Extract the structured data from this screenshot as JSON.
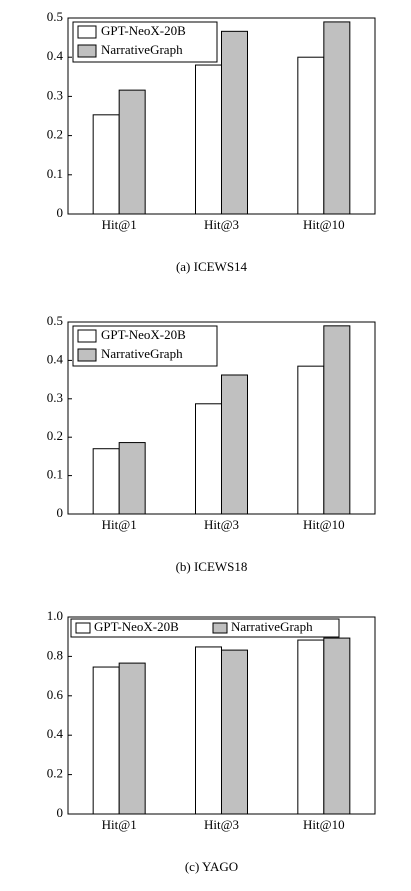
{
  "chart_data": [
    {
      "type": "bar",
      "caption": "(a) ICEWS14",
      "categories": [
        "Hit@1",
        "Hit@3",
        "Hit@10"
      ],
      "series": [
        {
          "name": "GPT-NeoX-20B",
          "color": "#ffffff",
          "values": [
            0.253,
            0.38,
            0.4
          ]
        },
        {
          "name": "NarrativeGraph",
          "color": "#c0c0c0",
          "values": [
            0.316,
            0.466,
            0.49
          ]
        }
      ],
      "ylim": [
        0,
        0.5
      ],
      "yticks": [
        0,
        0.1,
        0.2,
        0.3,
        0.4,
        0.5
      ],
      "legend": "upper left",
      "legend_layout": "vertical"
    },
    {
      "type": "bar",
      "caption": "(b) ICEWS18",
      "categories": [
        "Hit@1",
        "Hit@3",
        "Hit@10"
      ],
      "series": [
        {
          "name": "GPT-NeoX-20B",
          "color": "#ffffff",
          "values": [
            0.17,
            0.287,
            0.385
          ]
        },
        {
          "name": "NarrativeGraph",
          "color": "#c0c0c0",
          "values": [
            0.186,
            0.362,
            0.49
          ]
        }
      ],
      "ylim": [
        0,
        0.5
      ],
      "yticks": [
        0,
        0.1,
        0.2,
        0.3,
        0.4,
        0.5
      ],
      "legend": "upper left",
      "legend_layout": "vertical"
    },
    {
      "type": "bar",
      "caption": "(c) YAGO",
      "categories": [
        "Hit@1",
        "Hit@3",
        "Hit@10"
      ],
      "series": [
        {
          "name": "GPT-NeoX-20B",
          "color": "#ffffff",
          "values": [
            0.746,
            0.848,
            0.883
          ]
        },
        {
          "name": "NarrativeGraph",
          "color": "#c0c0c0",
          "values": [
            0.766,
            0.832,
            0.893
          ]
        }
      ],
      "ylim": [
        0,
        1.0
      ],
      "yticks": [
        0,
        0.2,
        0.4,
        0.6,
        0.8,
        {
          "value": 1.0,
          "label": "1.0"
        }
      ],
      "legend": "upper left",
      "legend_layout": "horizontal"
    }
  ]
}
